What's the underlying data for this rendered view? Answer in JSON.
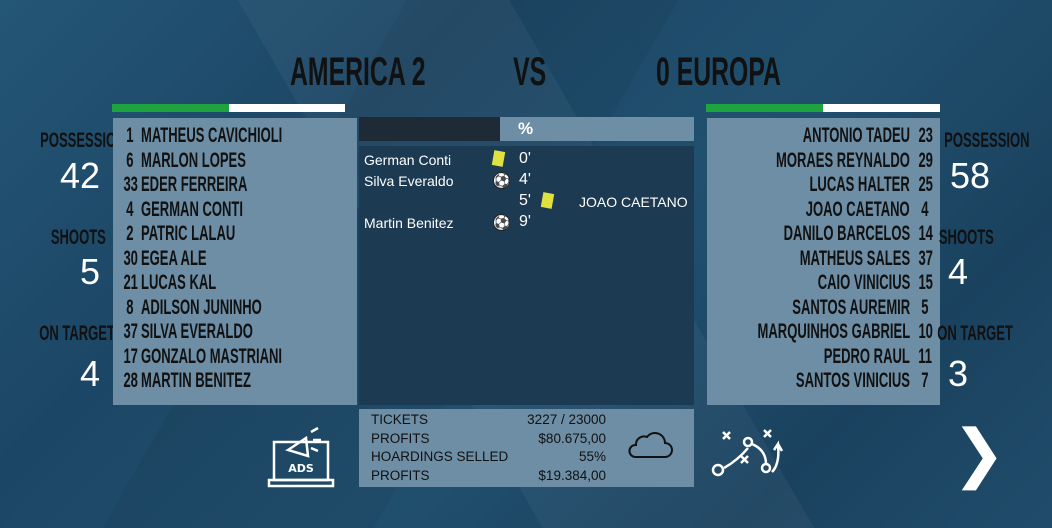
{
  "header": {
    "home_team": "AMERICA",
    "home_score": "2",
    "vs": "VS",
    "away_score": "0",
    "away_team": "EUROPA"
  },
  "colors": {
    "home_bar": [
      "#1fa33e",
      "#ffffff"
    ],
    "away_bar": [
      "#1fa33e",
      "#ffffff"
    ]
  },
  "home": {
    "stats": [
      {
        "label": "POSSESSION",
        "value": "42"
      },
      {
        "label": "SHOOTS",
        "value": "5"
      },
      {
        "label": "ON TARGET",
        "value": "4"
      }
    ],
    "players": [
      {
        "num": "1",
        "name": "MATHEUS CAVICHIOLI"
      },
      {
        "num": "6",
        "name": "MARLON LOPES"
      },
      {
        "num": "33",
        "name": "EDER FERREIRA"
      },
      {
        "num": "4",
        "name": "GERMAN CONTI"
      },
      {
        "num": "2",
        "name": "PATRIC LALAU"
      },
      {
        "num": "30",
        "name": "EGEA ALE"
      },
      {
        "num": "21",
        "name": "LUCAS KAL"
      },
      {
        "num": "8",
        "name": "ADILSON JUNINHO"
      },
      {
        "num": "37",
        "name": "SILVA EVERALDO"
      },
      {
        "num": "17",
        "name": "GONZALO MASTRIANI"
      },
      {
        "num": "28",
        "name": "MARTIN BENITEZ"
      }
    ]
  },
  "away": {
    "stats": [
      {
        "label": "POSSESSION",
        "value": "58"
      },
      {
        "label": "SHOOTS",
        "value": "4"
      },
      {
        "label": "ON TARGET",
        "value": "3"
      }
    ],
    "players": [
      {
        "num": "23",
        "name": "ANTONIO TADEU"
      },
      {
        "num": "29",
        "name": "MORAES REYNALDO"
      },
      {
        "num": "25",
        "name": "LUCAS HALTER"
      },
      {
        "num": "4",
        "name": "JOAO CAETANO"
      },
      {
        "num": "14",
        "name": "DANILO BARCELOS"
      },
      {
        "num": "37",
        "name": "MATHEUS SALES"
      },
      {
        "num": "15",
        "name": "CAIO VINICIUS"
      },
      {
        "num": "5",
        "name": "SANTOS AUREMIR"
      },
      {
        "num": "10",
        "name": "MARQUINHOS GABRIEL"
      },
      {
        "num": "11",
        "name": "PEDRO RAUL"
      },
      {
        "num": "7",
        "name": "SANTOS VINICIUS"
      }
    ]
  },
  "possession_bar": {
    "label": "%",
    "home_fraction": 0.42
  },
  "events": [
    {
      "side": "home",
      "player": "German Conti",
      "icon": "yellow-card-icon",
      "minute": "0'"
    },
    {
      "side": "home",
      "player": "Silva Everaldo",
      "icon": "soccer-ball-icon",
      "minute": "4'"
    },
    {
      "side": "away",
      "player": "JOAO CAETANO",
      "icon": "yellow-card-icon",
      "minute": "5'"
    },
    {
      "side": "home",
      "player": "Martin Benitez",
      "icon": "soccer-ball-icon",
      "minute": "9'"
    }
  ],
  "finance": [
    {
      "label": "TICKETS",
      "value": "3227 / 23000"
    },
    {
      "label": "PROFITS",
      "value": "$80.675,00"
    },
    {
      "label": "HOARDINGS SELLED",
      "value": "55%"
    },
    {
      "label": "PROFITS",
      "value": "$19.384,00"
    }
  ],
  "icons": {
    "weather": "cloud-icon",
    "ads": "ads-laptop-icon",
    "tactics": "tactics-icon",
    "next": "chevron-right-icon"
  },
  "buttons": {
    "ads_label": "ADS",
    "next": "❯"
  }
}
